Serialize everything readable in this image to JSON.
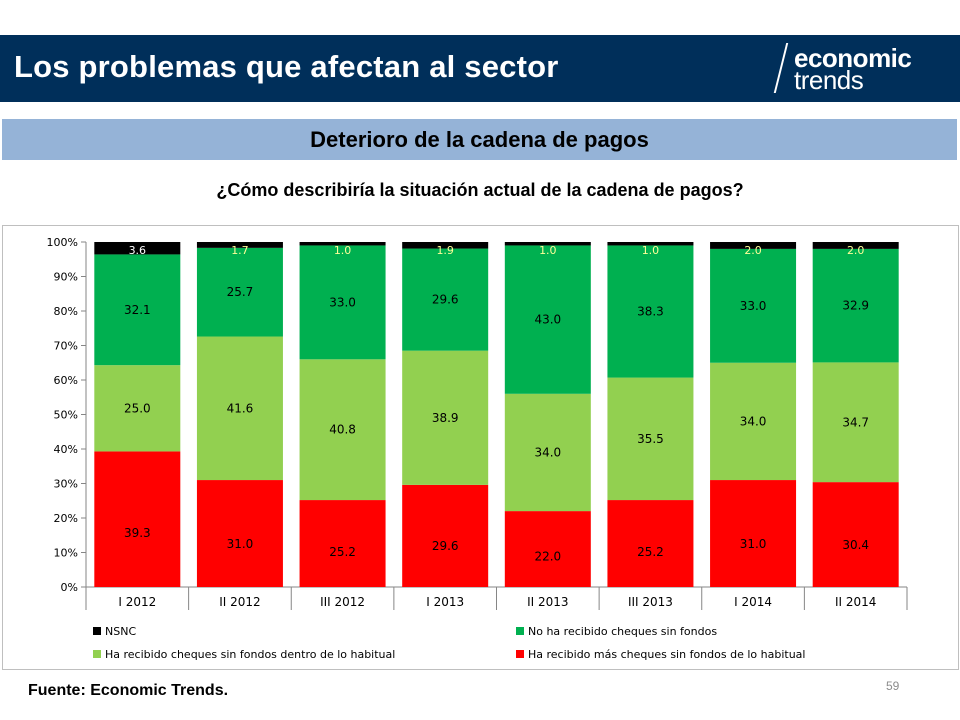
{
  "header": {
    "title": "Los problemas que afectan al sector",
    "background": "#002f5a",
    "logo_line1": "economic",
    "logo_line2": "trends",
    "logo_icon": "slash-logo-icon"
  },
  "subheader": {
    "title": "Deterioro de la cadena de pagos",
    "background": "#95b3d7"
  },
  "footer": {
    "source": "Fuente: Economic Trends.",
    "page_number": "59"
  },
  "chart_data": {
    "type": "bar",
    "stacked": true,
    "title": "¿Cómo describiría la situación actual de la cadena de pagos?",
    "xlabel": "",
    "ylabel": "",
    "ylim": [
      0,
      100
    ],
    "y_ticks": [
      "0%",
      "10%",
      "20%",
      "30%",
      "40%",
      "50%",
      "60%",
      "70%",
      "80%",
      "90%",
      "100%"
    ],
    "categories": [
      "I 2012",
      "II 2012",
      "III 2012",
      "I 2013",
      "II 2013",
      "III 2013",
      "I 2014",
      "II 2014"
    ],
    "series": [
      {
        "name": "Ha recibido más cheques sin fondos de lo habitual",
        "color": "#ff0000",
        "values": [
          39.3,
          31.0,
          25.2,
          29.6,
          22.0,
          25.2,
          31.0,
          30.4
        ],
        "labels": [
          "39.3",
          "31.0",
          "25.2",
          "29.6",
          "22.0",
          "25.2",
          "31.0",
          "30.4"
        ]
      },
      {
        "name": "Ha recibido cheques sin fondos dentro de lo habitual",
        "color": "#92d050",
        "values": [
          25.0,
          41.6,
          40.8,
          38.9,
          34.0,
          35.5,
          34.0,
          34.7
        ],
        "labels": [
          "25.0",
          "41.6",
          "40.8",
          "38.9",
          "34.0",
          "35.5",
          "34.0",
          "34.7"
        ]
      },
      {
        "name": "No ha recibido cheques sin fondos",
        "color": "#00b050",
        "values": [
          32.1,
          25.7,
          33.0,
          29.6,
          43.0,
          38.3,
          33.0,
          32.9
        ],
        "labels": [
          "32.1",
          "25.7",
          "33.0",
          "29.6",
          "43.0",
          "38.3",
          "33.0",
          "32.9"
        ]
      },
      {
        "name": "NSNC",
        "color": "#000000",
        "values": [
          3.6,
          1.7,
          1.0,
          1.9,
          1.0,
          1.0,
          2.0,
          2.0
        ],
        "labels": [
          "3.6",
          "1.7",
          "1.0",
          "1.9",
          "1.0",
          "1.0",
          "2.0",
          "2.0"
        ]
      }
    ],
    "legend": {
      "placement": "bottom",
      "order": [
        "NSNC",
        "No ha recibido cheques sin fondos",
        "Ha recibido cheques sin fondos dentro de lo habitual",
        "Ha recibido más cheques sin fondos de lo habitual"
      ]
    },
    "grid": false
  }
}
